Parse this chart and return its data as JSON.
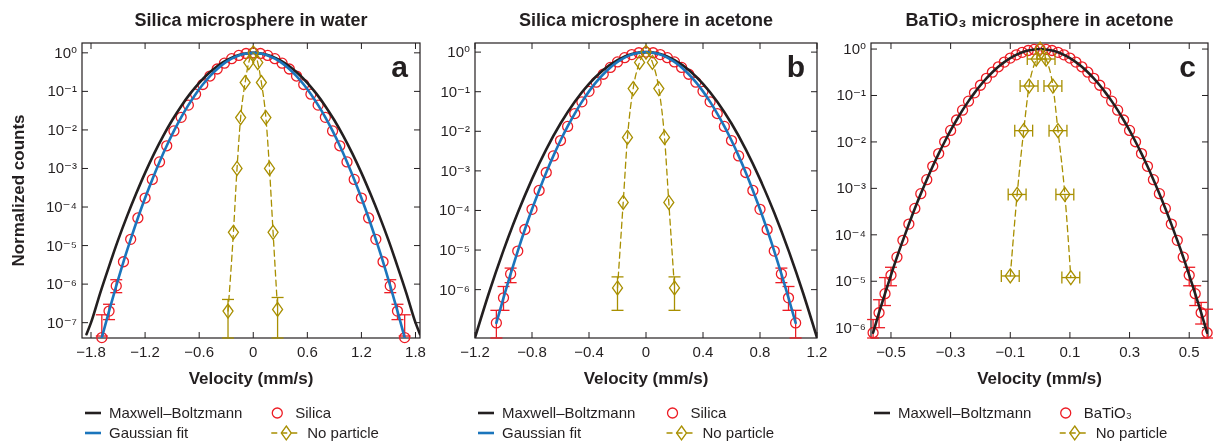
{
  "chart_data": [
    {
      "type": "line",
      "title": "Silica microsphere in water",
      "xlabel": "Velocity (mm/s)",
      "ylabel": "Normalized counts",
      "annotations": [
        "a"
      ],
      "log": true,
      "legend": "bottom",
      "xlim": [
        -1.9,
        1.85
      ],
      "xticks": [
        {
          "value": -1.8,
          "label": "−1.8"
        },
        {
          "value": -1.2,
          "label": "−1.2"
        },
        {
          "value": -0.6,
          "label": "−0.6"
        },
        0,
        0.6,
        1.2,
        1.8
      ],
      "ylim": [
        4e-08,
        1.8
      ],
      "yticks": [
        {
          "value": 1,
          "label": "10⁰"
        },
        {
          "value": 0.1,
          "label": "10⁻¹"
        },
        {
          "value": 0.01,
          "label": "10⁻²"
        },
        {
          "value": 0.001,
          "label": "10⁻³"
        },
        {
          "value": 0.0001,
          "label": "10⁻⁴"
        },
        {
          "value": 1e-05,
          "label": "10⁻⁵"
        },
        {
          "value": 1e-06,
          "label": "10⁻⁶"
        },
        {
          "value": 1e-07,
          "label": "10⁻⁷"
        }
      ],
      "x": [
        -1.68,
        -1.6,
        -1.52,
        -1.44,
        -1.36,
        -1.28,
        -1.2,
        -1.12,
        -1.04,
        -0.96,
        -0.88,
        -0.8,
        -0.72,
        -0.64,
        -0.56,
        -0.48,
        -0.4,
        -0.32,
        -0.24,
        -0.16,
        -0.08,
        0,
        0.08,
        0.16,
        0.24,
        0.32,
        0.4,
        0.48,
        0.56,
        0.64,
        0.72,
        0.8,
        0.88,
        0.96,
        1.04,
        1.12,
        1.2,
        1.28,
        1.36,
        1.44,
        1.52,
        1.6,
        1.68
      ],
      "series": [
        {
          "name": "Maxwell–Boltzmann",
          "color": "#231f20",
          "line_style": "solid",
          "marker": "none",
          "x": [
            -1.85,
            -1.8,
            -1.7,
            -1.6,
            -1.5,
            -1.4,
            -1.3,
            -1.2,
            -1.1,
            -1.0,
            -0.9,
            -0.8,
            -0.7,
            -0.6,
            -0.5,
            -0.4,
            -0.3,
            -0.2,
            -0.1,
            0,
            0.1,
            0.2,
            0.3,
            0.4,
            0.5,
            0.6,
            0.7,
            0.8,
            0.9,
            1.0,
            1.1,
            1.2,
            1.3,
            1.4,
            1.5,
            1.6,
            1.7,
            1.8,
            1.85
          ],
          "values": [
            5e-08,
            1e-07,
            5.7e-07,
            2.9e-06,
            1.38e-05,
            5.8e-05,
            0.00022,
            0.00077,
            0.00243,
            0.00691,
            0.0178,
            0.0414,
            0.0873,
            0.167,
            0.288,
            0.451,
            0.639,
            0.82,
            0.951,
            1,
            0.951,
            0.82,
            0.639,
            0.451,
            0.288,
            0.167,
            0.0873,
            0.0414,
            0.0178,
            0.00691,
            0.00243,
            0.00077,
            0.00022,
            5.8e-05,
            1.38e-05,
            2.9e-06,
            5.7e-07,
            1e-07,
            5e-08
          ]
        },
        {
          "name": "Gaussian fit",
          "color": "#1b75bc",
          "line_style": "solid",
          "marker": "none",
          "values": [
            4.1e-08,
            2e-07,
            9e-07,
            3.8e-06,
            1.45e-05,
            5.2e-05,
            0.000171,
            0.00052,
            0.00148,
            0.00388,
            0.00942,
            0.0212,
            0.044,
            0.0848,
            0.151,
            0.25,
            0.381,
            0.54,
            0.707,
            0.857,
            0.962,
            1,
            0.962,
            0.857,
            0.707,
            0.54,
            0.381,
            0.25,
            0.151,
            0.0848,
            0.044,
            0.0212,
            0.00942,
            0.00388,
            0.00148,
            0.00052,
            0.000171,
            5.2e-05,
            1.45e-05,
            3.8e-06,
            9e-07,
            2e-07,
            4.1e-08
          ]
        },
        {
          "name": "Silica",
          "color": "#ed1c24",
          "type": "scatter",
          "marker": "circle",
          "values": [
            4.1e-08,
            2e-07,
            9e-07,
            3.8e-06,
            1.45e-05,
            5.2e-05,
            0.000171,
            0.00052,
            0.00148,
            0.00388,
            0.00942,
            0.0212,
            0.044,
            0.0848,
            0.151,
            0.25,
            0.381,
            0.54,
            0.707,
            0.857,
            0.962,
            1,
            0.962,
            0.857,
            0.707,
            0.54,
            0.381,
            0.25,
            0.151,
            0.0848,
            0.044,
            0.0212,
            0.00942,
            0.00388,
            0.00148,
            0.00052,
            0.000171,
            5.2e-05,
            1.45e-05,
            3.8e-06,
            9e-07,
            2e-07,
            4.1e-08
          ],
          "errors": [
            [
              4.5e-08,
              1.6e-07
            ],
            [
              1.2e-07,
              3e-07
            ],
            [
              6e-07,
              1.3e-06
            ],
            null,
            null,
            null,
            null,
            null,
            null,
            null,
            null,
            null,
            null,
            null,
            null,
            null,
            null,
            null,
            null,
            null,
            null,
            null,
            null,
            null,
            null,
            null,
            null,
            null,
            null,
            null,
            null,
            null,
            null,
            null,
            null,
            null,
            null,
            null,
            null,
            null,
            [
              6e-07,
              1.3e-06
            ],
            [
              1.2e-07,
              3e-07
            ],
            [
              4.5e-08,
              1.6e-07
            ]
          ]
        },
        {
          "name": "No particle",
          "color": "#a88f00",
          "line_style": "dashed",
          "marker": "diamond",
          "x": [
            -0.28,
            -0.22,
            -0.18,
            -0.14,
            -0.09,
            -0.05,
            0,
            0.05,
            0.09,
            0.14,
            0.18,
            0.22,
            0.27
          ],
          "values": [
            2e-07,
            2.2e-05,
            0.001,
            0.021,
            0.17,
            0.56,
            1,
            0.56,
            0.17,
            0.021,
            0.001,
            2.2e-05,
            2.2e-07
          ],
          "errors": [
            [
              4e-08,
              4e-07
            ],
            null,
            null,
            null,
            null,
            null,
            null,
            null,
            null,
            null,
            null,
            null,
            [
              4e-08,
              4.5e-07
            ]
          ]
        }
      ]
    },
    {
      "type": "line",
      "title": "Silica microsphere in acetone",
      "xlabel": "Velocity (mm/s)",
      "annotations": [
        "b"
      ],
      "log": true,
      "legend": "bottom",
      "xlim": [
        -1.2,
        1.2
      ],
      "xticks": [
        {
          "value": -1.2,
          "label": "−1.2"
        },
        {
          "value": -0.8,
          "label": "−0.8"
        },
        {
          "value": -0.4,
          "label": "−0.4"
        },
        0,
        0.4,
        0.8,
        1.2
      ],
      "ylim": [
        6e-08,
        1.7
      ],
      "yticks": [
        {
          "value": 1,
          "label": "10⁰"
        },
        {
          "value": 0.1,
          "label": "10⁻¹"
        },
        {
          "value": 0.01,
          "label": "10⁻²"
        },
        {
          "value": 0.001,
          "label": "10⁻³"
        },
        {
          "value": 0.0001,
          "label": "10⁻⁴"
        },
        {
          "value": 1e-05,
          "label": "10⁻⁵"
        },
        {
          "value": 1e-06,
          "label": "10⁻⁶"
        }
      ],
      "x": [
        -1.05,
        -1.0,
        -0.95,
        -0.9,
        -0.85,
        -0.8,
        -0.75,
        -0.7,
        -0.65,
        -0.6,
        -0.55,
        -0.5,
        -0.45,
        -0.4,
        -0.35,
        -0.3,
        -0.25,
        -0.2,
        -0.15,
        -0.1,
        -0.05,
        0,
        0.05,
        0.1,
        0.15,
        0.2,
        0.25,
        0.3,
        0.35,
        0.4,
        0.45,
        0.5,
        0.55,
        0.6,
        0.65,
        0.7,
        0.75,
        0.8,
        0.85,
        0.9,
        0.95,
        1.0,
        1.05
      ],
      "series": [
        {
          "name": "Maxwell–Boltzmann",
          "color": "#231f20",
          "line_style": "solid",
          "marker": "none",
          "x": [
            -1.2,
            -1.1,
            -1.0,
            -0.9,
            -0.8,
            -0.7,
            -0.6,
            -0.5,
            -0.4,
            -0.3,
            -0.2,
            -0.1,
            0,
            0.1,
            0.2,
            0.3,
            0.4,
            0.5,
            0.6,
            0.7,
            0.8,
            0.9,
            1.0,
            1.1,
            1.2
          ],
          "values": [
            6.1e-08,
            8.7e-07,
            9.8e-06,
            8.7e-05,
            0.00062,
            0.00351,
            0.0157,
            0.0559,
            0.158,
            0.354,
            0.63,
            0.891,
            1,
            0.891,
            0.63,
            0.354,
            0.158,
            0.0559,
            0.0157,
            0.00351,
            0.00062,
            8.7e-05,
            9.8e-06,
            8.7e-07,
            6.1e-08
          ]
        },
        {
          "name": "Gaussian fit",
          "color": "#1b75bc",
          "line_style": "solid",
          "marker": "none",
          "values": [
            1.44e-07,
            6.2e-07,
            2.5e-06,
            9.4e-06,
            3.3e-05,
            0.000107,
            0.00032,
            0.00091,
            0.00239,
            0.00584,
            0.0133,
            0.0281,
            0.0554,
            0.102,
            0.174,
            0.276,
            0.41,
            0.565,
            0.725,
            0.867,
            0.965,
            1,
            0.965,
            0.867,
            0.725,
            0.565,
            0.41,
            0.276,
            0.174,
            0.102,
            0.0554,
            0.0281,
            0.0133,
            0.00584,
            0.00239,
            0.00091,
            0.00032,
            0.000107,
            3.3e-05,
            9.4e-06,
            2.5e-06,
            6.2e-07,
            1.44e-07
          ]
        },
        {
          "name": "Silica",
          "color": "#ed1c24",
          "type": "scatter",
          "marker": "circle",
          "values": [
            1.44e-07,
            6.2e-07,
            2.5e-06,
            9.4e-06,
            3.3e-05,
            0.000107,
            0.00032,
            0.00091,
            0.00239,
            0.00584,
            0.0133,
            0.0281,
            0.0554,
            0.102,
            0.174,
            0.276,
            0.41,
            0.565,
            0.725,
            0.867,
            0.965,
            1,
            0.965,
            0.867,
            0.725,
            0.565,
            0.41,
            0.276,
            0.174,
            0.102,
            0.0554,
            0.0281,
            0.0133,
            0.00584,
            0.00239,
            0.00091,
            0.00032,
            0.000107,
            3.3e-05,
            9.4e-06,
            2.5e-06,
            6.2e-07,
            1.44e-07
          ],
          "errors": [
            [
              6e-08,
              3e-07
            ],
            [
              3e-07,
              1.2e-06
            ],
            [
              1.5e-06,
              3.5e-06
            ],
            null,
            null,
            null,
            null,
            null,
            null,
            null,
            null,
            null,
            null,
            null,
            null,
            null,
            null,
            null,
            null,
            null,
            null,
            null,
            null,
            null,
            null,
            null,
            null,
            null,
            null,
            null,
            null,
            null,
            null,
            null,
            null,
            null,
            null,
            null,
            null,
            null,
            [
              1.5e-06,
              3.5e-06
            ],
            [
              3e-07,
              1.2e-06
            ],
            [
              6e-08,
              3e-07
            ]
          ]
        },
        {
          "name": "No particle",
          "color": "#a88f00",
          "line_style": "dashed",
          "marker": "diamond",
          "x": [
            -0.2,
            -0.16,
            -0.13,
            -0.09,
            -0.045,
            0,
            0.045,
            0.09,
            0.13,
            0.16,
            0.2
          ],
          "values": [
            1.1e-06,
            0.00016,
            0.007,
            0.12,
            0.55,
            1,
            0.55,
            0.12,
            0.007,
            0.00016,
            1.1e-06
          ],
          "errors": [
            [
              3e-07,
              2.1e-06
            ],
            null,
            null,
            null,
            null,
            null,
            null,
            null,
            null,
            null,
            [
              3e-07,
              2.1e-06
            ]
          ]
        }
      ]
    },
    {
      "type": "line",
      "title": "BaTiO₃ microsphere in acetone",
      "xlabel": "Velocity (mm/s)",
      "annotations": [
        "c"
      ],
      "log": true,
      "legend": "bottom",
      "xlim": [
        -0.567,
        0.563
      ],
      "xticks": [
        {
          "value": -0.5,
          "label": "−0.5"
        },
        {
          "value": -0.3,
          "label": "−0.3"
        },
        {
          "value": -0.1,
          "label": "−0.1"
        },
        0.1,
        0.3,
        0.5
      ],
      "ylim": [
        6e-07,
        1.35
      ],
      "yticks": [
        {
          "value": 1,
          "label": "10⁰"
        },
        {
          "value": 0.1,
          "label": "10⁻¹"
        },
        {
          "value": 0.01,
          "label": "10⁻²"
        },
        {
          "value": 0.001,
          "label": "10⁻³"
        },
        {
          "value": 0.0001,
          "label": "10⁻⁴"
        },
        {
          "value": 1e-05,
          "label": "10⁻⁵"
        },
        {
          "value": 1e-06,
          "label": "10⁻⁶"
        }
      ],
      "x": [
        -0.56,
        -0.54,
        -0.52,
        -0.5,
        -0.48,
        -0.46,
        -0.44,
        -0.42,
        -0.4,
        -0.38,
        -0.36,
        -0.34,
        -0.32,
        -0.3,
        -0.28,
        -0.26,
        -0.24,
        -0.22,
        -0.2,
        -0.18,
        -0.16,
        -0.14,
        -0.12,
        -0.1,
        -0.08,
        -0.06,
        -0.04,
        -0.02,
        0,
        0.02,
        0.04,
        0.06,
        0.08,
        0.1,
        0.12,
        0.14,
        0.16,
        0.18,
        0.2,
        0.22,
        0.24,
        0.26,
        0.28,
        0.3,
        0.32,
        0.34,
        0.36,
        0.38,
        0.4,
        0.42,
        0.44,
        0.46,
        0.48,
        0.5,
        0.52,
        0.54,
        0.56
      ],
      "series": [
        {
          "name": "Maxwell–Boltzmann",
          "color": "#231f20",
          "line_style": "solid",
          "marker": "none",
          "values": [
            7.8e-07,
            2.1e-06,
            5.4e-06,
            1.35e-05,
            3.3e-05,
            7.6e-05,
            0.00017,
            0.00037,
            0.00077,
            0.00154,
            0.00299,
            0.00561,
            0.0101,
            0.0177,
            0.0297,
            0.0483,
            0.0756,
            0.114,
            0.166,
            0.234,
            0.317,
            0.415,
            0.524,
            0.639,
            0.751,
            0.851,
            0.931,
            0.982,
            1,
            0.982,
            0.931,
            0.851,
            0.751,
            0.639,
            0.524,
            0.415,
            0.317,
            0.234,
            0.166,
            0.114,
            0.0756,
            0.0483,
            0.0297,
            0.0177,
            0.0101,
            0.00561,
            0.00299,
            0.00154,
            0.00077,
            0.00037,
            0.00017,
            7.6e-05,
            3.3e-05,
            1.35e-05,
            5.4e-06,
            2.1e-06,
            7.8e-07
          ]
        },
        {
          "name": "BaTiO₃",
          "color": "#ed1c24",
          "type": "scatter",
          "marker": "circle",
          "values": [
            7.8e-07,
            2.1e-06,
            5.4e-06,
            1.35e-05,
            3.3e-05,
            7.6e-05,
            0.00017,
            0.00037,
            0.00077,
            0.00154,
            0.00299,
            0.00561,
            0.0101,
            0.0177,
            0.0297,
            0.0483,
            0.0756,
            0.114,
            0.166,
            0.234,
            0.317,
            0.415,
            0.524,
            0.639,
            0.751,
            0.851,
            0.931,
            0.982,
            1,
            0.982,
            0.931,
            0.851,
            0.751,
            0.639,
            0.524,
            0.415,
            0.317,
            0.234,
            0.166,
            0.114,
            0.0756,
            0.0483,
            0.0297,
            0.0177,
            0.0101,
            0.00561,
            0.00299,
            0.00154,
            0.00077,
            0.00037,
            0.00017,
            7.6e-05,
            3.3e-05,
            1.35e-05,
            5.4e-06,
            2.1e-06,
            7.8e-07
          ],
          "errors": [
            [
              6e-07,
              1.5e-06
            ],
            [
              1e-06,
              4e-06
            ],
            [
              3e-06,
              1.2e-05
            ],
            [
              8e-06,
              2e-05
            ],
            null,
            null,
            null,
            null,
            null,
            null,
            null,
            null,
            null,
            null,
            null,
            null,
            null,
            null,
            null,
            null,
            null,
            null,
            null,
            null,
            null,
            null,
            null,
            null,
            null,
            null,
            null,
            null,
            null,
            null,
            null,
            null,
            null,
            null,
            null,
            null,
            null,
            null,
            null,
            null,
            null,
            null,
            null,
            null,
            null,
            null,
            null,
            null,
            null,
            [
              8e-06,
              2e-05
            ],
            [
              3e-06,
              8e-06
            ],
            [
              1.2e-06,
              3.5e-06
            ],
            [
              6e-07,
              2.5e-06
            ]
          ]
        },
        {
          "name": "No particle",
          "color": "#a88f00",
          "line_style": "dashed",
          "marker": "diamond",
          "x": [
            -0.1,
            -0.077,
            -0.055,
            -0.037,
            -0.013,
            0,
            0.02,
            0.043,
            0.06,
            0.083,
            0.103
          ],
          "values": [
            1.3e-05,
            0.00074,
            0.0175,
            0.16,
            0.61,
            1,
            0.61,
            0.16,
            0.0175,
            0.00074,
            1.2e-05
          ],
          "xerrors": [
            0.03,
            0.03,
            0.03,
            0.03,
            0.03,
            null,
            0.03,
            0.03,
            0.03,
            0.03,
            0.03
          ]
        }
      ]
    }
  ]
}
